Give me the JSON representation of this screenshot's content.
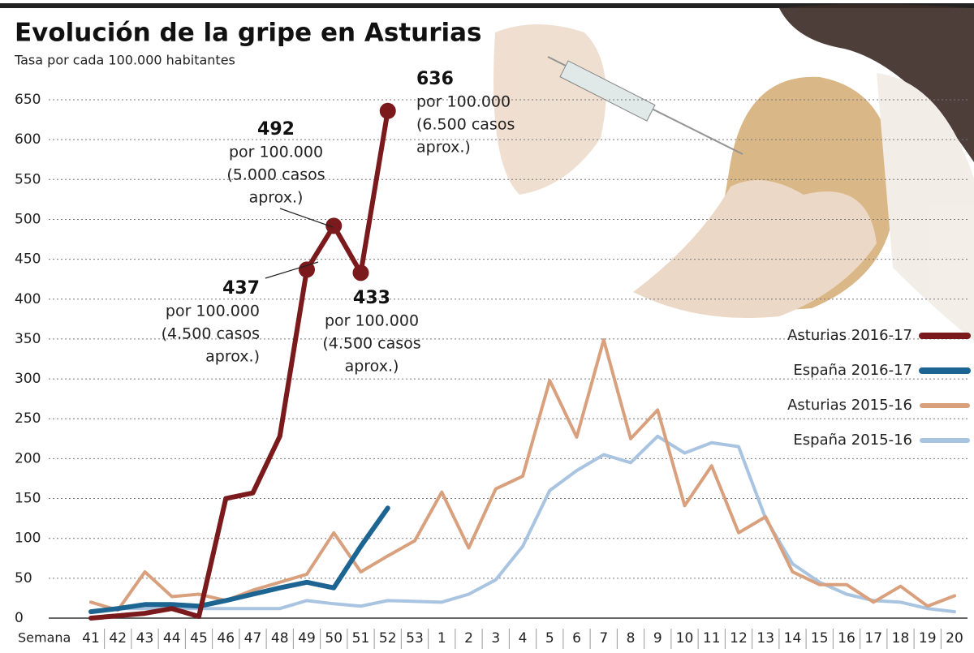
{
  "chart_data": {
    "type": "line",
    "title": "Evolución de la gripe en Asturias",
    "subtitle": "Tasa por cada 100.000 habitantes",
    "x_label": "Semana",
    "categories": [
      "41",
      "42",
      "43",
      "44",
      "45",
      "46",
      "47",
      "48",
      "49",
      "50",
      "51",
      "52",
      "53",
      "1",
      "2",
      "3",
      "4",
      "5",
      "6",
      "7",
      "8",
      "9",
      "10",
      "11",
      "12",
      "13",
      "14",
      "15",
      "16",
      "17",
      "18",
      "19",
      "20"
    ],
    "ylim": [
      0,
      650
    ],
    "yticks": [
      0,
      50,
      100,
      150,
      200,
      250,
      300,
      350,
      400,
      450,
      500,
      550,
      600,
      650
    ],
    "grid": true,
    "series": [
      {
        "name": "Asturias 2016-17",
        "color": "#7a1a1c",
        "width": 6,
        "values": [
          0,
          3,
          6,
          12,
          2,
          150,
          157,
          228,
          437,
          492,
          433,
          636,
          null,
          null,
          null,
          null,
          null,
          null,
          null,
          null,
          null,
          null,
          null,
          null,
          null,
          null,
          null,
          null,
          null,
          null,
          null,
          null,
          null
        ]
      },
      {
        "name": "España 2016-17",
        "color": "#1c6491",
        "width": 6,
        "values": [
          8,
          12,
          17,
          17,
          15,
          22,
          30,
          38,
          45,
          38,
          90,
          138,
          null,
          null,
          null,
          null,
          null,
          null,
          null,
          null,
          null,
          null,
          null,
          null,
          null,
          null,
          null,
          null,
          null,
          null,
          null,
          null,
          null
        ]
      },
      {
        "name": "Asturias 2015-16",
        "color": "#d9a07e",
        "width": 4,
        "values": [
          20,
          10,
          58,
          27,
          30,
          22,
          35,
          45,
          55,
          107,
          58,
          78,
          97,
          158,
          88,
          162,
          178,
          298,
          227,
          349,
          225,
          261,
          141,
          191,
          107,
          127,
          58,
          42,
          42,
          20,
          40,
          15,
          28
        ]
      },
      {
        "name": "España 2015-16",
        "color": "#a9c4e0",
        "width": 4,
        "values": [
          8,
          12,
          12,
          12,
          12,
          12,
          12,
          12,
          22,
          18,
          15,
          22,
          21,
          20,
          30,
          48,
          90,
          160,
          185,
          205,
          195,
          228,
          207,
          220,
          215,
          125,
          68,
          45,
          30,
          22,
          20,
          12,
          8
        ]
      }
    ],
    "annotations": [
      {
        "value": 437,
        "text": [
          "por 100.000",
          "(4.500 casos",
          "aprox.)"
        ]
      },
      {
        "value": 492,
        "text": [
          "por 100.000",
          "(5.000 casos",
          "aprox.)"
        ]
      },
      {
        "value": 433,
        "text": [
          "por 100.000",
          "(4.500 casos",
          "aprox.)"
        ]
      },
      {
        "value": 636,
        "text": [
          "por 100.000",
          "(6.500 casos",
          "aprox.)"
        ]
      }
    ],
    "legend": "right"
  }
}
